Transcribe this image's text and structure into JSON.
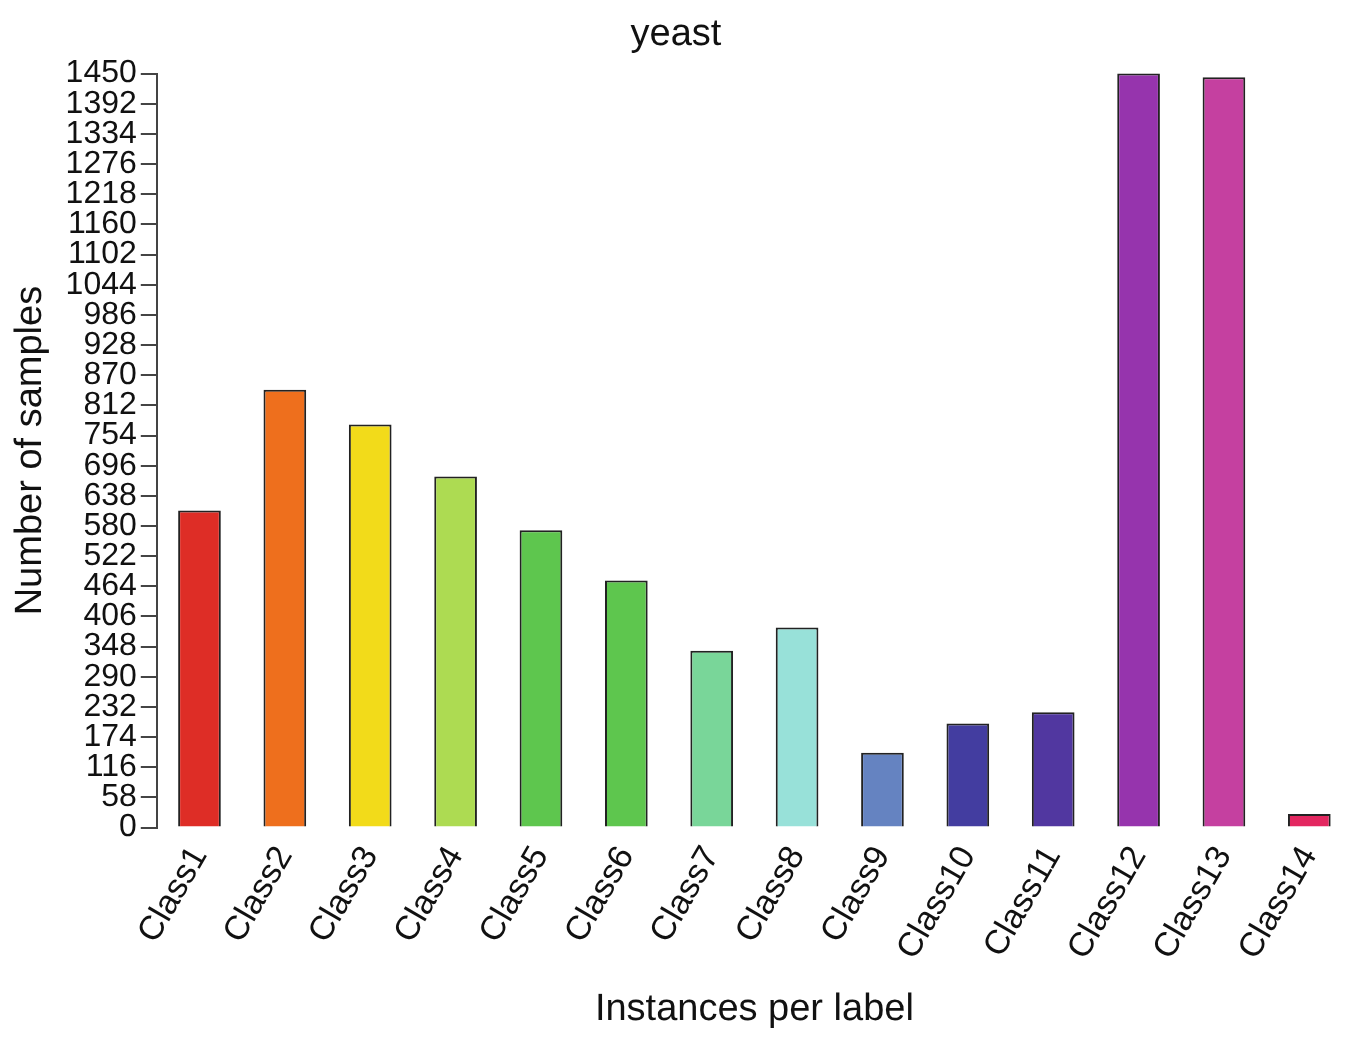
{
  "chart_data": {
    "type": "bar",
    "title": "yeast",
    "xlabel": "Instances per label",
    "ylabel": "Number of samples",
    "categories": [
      "Class1",
      "Class2",
      "Class3",
      "Class4",
      "Class5",
      "Class6",
      "Class7",
      "Class8",
      "Class9",
      "Class10",
      "Class11",
      "Class12",
      "Class13",
      "Class14"
    ],
    "values": [
      610,
      842,
      775,
      675,
      572,
      475,
      340,
      385,
      144,
      200,
      222,
      1450,
      1443,
      26
    ],
    "colors": [
      "#de2d26",
      "#ee6f1d",
      "#f2db1a",
      "#addb52",
      "#5ec64e",
      "#5ec64e",
      "#79d699",
      "#98e1d9",
      "#6583c1",
      "#433da0",
      "#5137a0",
      "#9634ad",
      "#c540a0",
      "#e32760"
    ],
    "ylim": [
      0,
      1450
    ],
    "yticks": [
      0,
      58,
      116,
      174,
      232,
      290,
      348,
      406,
      464,
      522,
      580,
      638,
      696,
      754,
      812,
      870,
      928,
      986,
      1044,
      1102,
      1160,
      1218,
      1276,
      1334,
      1392,
      1450
    ],
    "grid": false,
    "legend": false
  }
}
